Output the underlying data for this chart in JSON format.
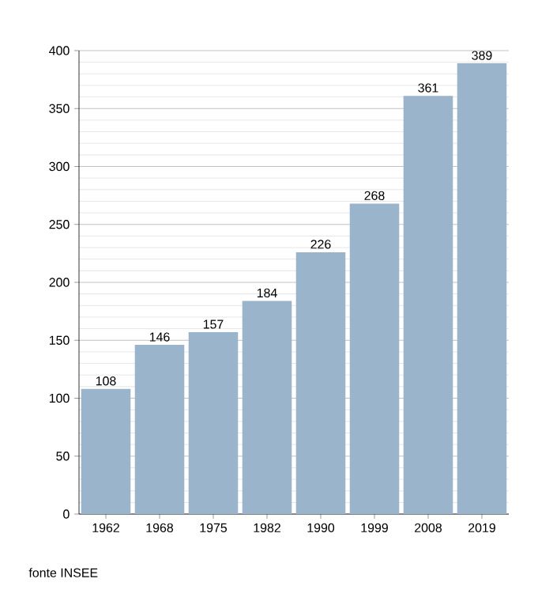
{
  "chart_data": {
    "type": "bar",
    "categories": [
      "1962",
      "1968",
      "1975",
      "1982",
      "1990",
      "1999",
      "2008",
      "2019"
    ],
    "values": [
      108,
      146,
      157,
      184,
      226,
      268,
      361,
      389
    ],
    "color": "#9ab4cc",
    "ylim": [
      0,
      400
    ],
    "yticks": [
      0,
      50,
      100,
      150,
      200,
      250,
      300,
      350,
      400
    ],
    "grid": "y",
    "data_labels": true,
    "annotations": [
      "fonte INSEE"
    ]
  }
}
